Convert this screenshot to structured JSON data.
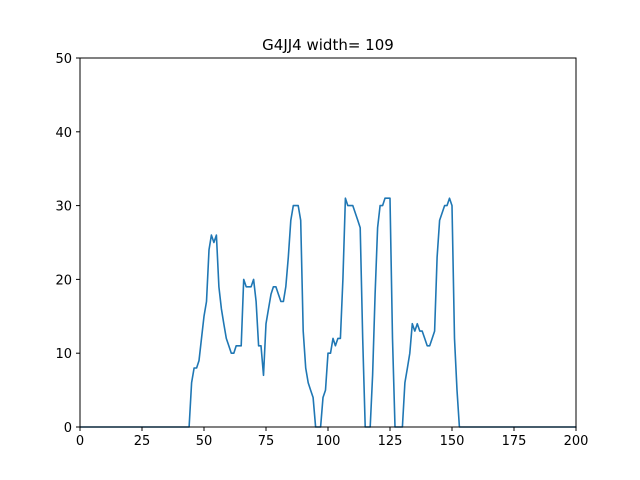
{
  "chart_data": {
    "type": "line",
    "title": "G4JJ4 width= 109",
    "xlabel": "",
    "ylabel": "",
    "xlim": [
      0,
      200
    ],
    "ylim": [
      0,
      50
    ],
    "xticks": [
      0,
      25,
      50,
      75,
      100,
      125,
      150,
      175,
      200
    ],
    "yticks": [
      0,
      10,
      20,
      30,
      40,
      50
    ],
    "grid": false,
    "legend": "none",
    "line_color": "#1f77b4",
    "series": [
      {
        "x": [
          0,
          5,
          10,
          15,
          20,
          25,
          30,
          35,
          40,
          44,
          45,
          46,
          47,
          48,
          49,
          50,
          51,
          52,
          53,
          54,
          55,
          56,
          57,
          58,
          59,
          60,
          61,
          62,
          63,
          64,
          65,
          66,
          67,
          68,
          69,
          70,
          71,
          72,
          73,
          74,
          75,
          76,
          77,
          78,
          79,
          80,
          81,
          82,
          83,
          84,
          85,
          86,
          87,
          88,
          89,
          90,
          91,
          92,
          93,
          94,
          95,
          96,
          97,
          98,
          99,
          100,
          101,
          102,
          103,
          104,
          105,
          106,
          107,
          108,
          109,
          110,
          111,
          112,
          113,
          114,
          115,
          116,
          117,
          118,
          119,
          120,
          121,
          122,
          123,
          124,
          125,
          126,
          127,
          128,
          129,
          130,
          131,
          132,
          133,
          134,
          135,
          136,
          137,
          138,
          139,
          140,
          141,
          142,
          143,
          144,
          145,
          146,
          147,
          148,
          149,
          150,
          151,
          152,
          153,
          154,
          155,
          160,
          170,
          180,
          190,
          200
        ],
        "y": [
          0,
          0,
          0,
          0,
          0,
          0,
          0,
          0,
          0,
          0,
          6,
          8,
          8,
          9,
          12,
          15,
          17,
          24,
          26,
          25,
          26,
          19,
          16,
          14,
          12,
          11,
          10,
          10,
          11,
          11,
          11,
          20,
          19,
          19,
          19,
          20,
          17,
          11,
          11,
          7,
          14,
          16,
          18,
          19,
          19,
          18,
          17,
          17,
          19,
          23,
          28,
          30,
          30,
          30,
          28,
          13,
          8,
          6,
          5,
          4,
          0,
          0,
          0,
          4,
          5,
          10,
          10,
          12,
          11,
          12,
          12,
          20,
          31,
          30,
          30,
          30,
          29,
          28,
          27,
          12,
          0,
          0,
          0,
          7,
          18,
          27,
          30,
          30,
          31,
          31,
          31,
          12,
          0,
          0,
          0,
          0,
          6,
          8,
          10,
          14,
          13,
          14,
          13,
          13,
          12,
          11,
          11,
          12,
          13,
          23,
          28,
          29,
          30,
          30,
          31,
          30,
          12,
          5,
          0,
          0,
          0,
          0,
          0,
          0,
          0,
          0
        ]
      }
    ]
  }
}
